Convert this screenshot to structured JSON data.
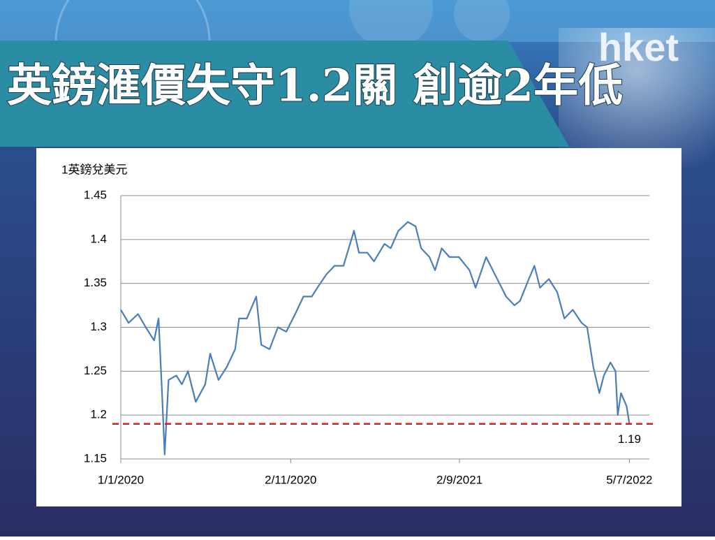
{
  "logo": "hket",
  "chart_data": {
    "type": "line",
    "title": "英鎊滙價失守1.2關  創逾2年低",
    "y_label": "1英鎊兌美元",
    "color": "#4a7ebb",
    "x": [
      "2020-01-01",
      "2020-01-15",
      "2020-02-01",
      "2020-02-15",
      "2020-03-01",
      "2020-03-09",
      "2020-03-15",
      "2020-03-20",
      "2020-03-27",
      "2020-04-10",
      "2020-04-20",
      "2020-05-01",
      "2020-05-15",
      "2020-06-01",
      "2020-06-10",
      "2020-06-25",
      "2020-07-10",
      "2020-07-25",
      "2020-08-01",
      "2020-08-15",
      "2020-09-01",
      "2020-09-10",
      "2020-09-25",
      "2020-10-10",
      "2020-10-25",
      "2020-11-10",
      "2020-11-25",
      "2020-12-10",
      "2020-12-20",
      "2021-01-05",
      "2021-01-20",
      "2021-02-05",
      "2021-02-24",
      "2021-03-05",
      "2021-03-20",
      "2021-04-01",
      "2021-04-20",
      "2021-05-01",
      "2021-05-15",
      "2021-06-01",
      "2021-06-15",
      "2021-06-25",
      "2021-07-10",
      "2021-07-20",
      "2021-08-01",
      "2021-08-15",
      "2021-09-01",
      "2021-09-20",
      "2021-10-01",
      "2021-10-20",
      "2021-11-05",
      "2021-11-25",
      "2021-12-10",
      "2021-12-20",
      "2022-01-05",
      "2022-01-15",
      "2022-01-25",
      "2022-02-10",
      "2022-02-25",
      "2022-03-10",
      "2022-03-25",
      "2022-04-10",
      "2022-04-20",
      "2022-05-01",
      "2022-05-12",
      "2022-05-20",
      "2022-06-01",
      "2022-06-10",
      "2022-06-14",
      "2022-06-20",
      "2022-06-30",
      "2022-07-05"
    ],
    "values": [
      1.32,
      1.305,
      1.315,
      1.3,
      1.285,
      1.31,
      1.23,
      1.155,
      1.24,
      1.245,
      1.235,
      1.25,
      1.215,
      1.235,
      1.27,
      1.24,
      1.255,
      1.275,
      1.31,
      1.31,
      1.335,
      1.28,
      1.275,
      1.3,
      1.295,
      1.315,
      1.335,
      1.335,
      1.345,
      1.36,
      1.37,
      1.37,
      1.41,
      1.385,
      1.385,
      1.375,
      1.395,
      1.39,
      1.41,
      1.42,
      1.415,
      1.39,
      1.38,
      1.365,
      1.39,
      1.38,
      1.38,
      1.365,
      1.345,
      1.38,
      1.36,
      1.335,
      1.325,
      1.33,
      1.355,
      1.37,
      1.345,
      1.355,
      1.34,
      1.31,
      1.32,
      1.305,
      1.3,
      1.255,
      1.225,
      1.245,
      1.26,
      1.25,
      1.2,
      1.225,
      1.21,
      1.19
    ],
    "xlim": [
      "2020-01-01",
      "2022-08-10"
    ],
    "xticks": [
      {
        "value": "2020-01-01",
        "label": "1/1/2020"
      },
      {
        "value": "2020-11-02",
        "label": "2/11/2020"
      },
      {
        "value": "2021-09-02",
        "label": "2/9/2021"
      },
      {
        "value": "2022-07-05",
        "label": "5/7/2022"
      }
    ],
    "ylim": [
      1.15,
      1.45
    ],
    "yticks": [
      1.15,
      1.2,
      1.25,
      1.3,
      1.35,
      1.4,
      1.45
    ],
    "grid": true,
    "reference_line": {
      "value": 1.19,
      "color": "#e31a1c"
    }
  }
}
